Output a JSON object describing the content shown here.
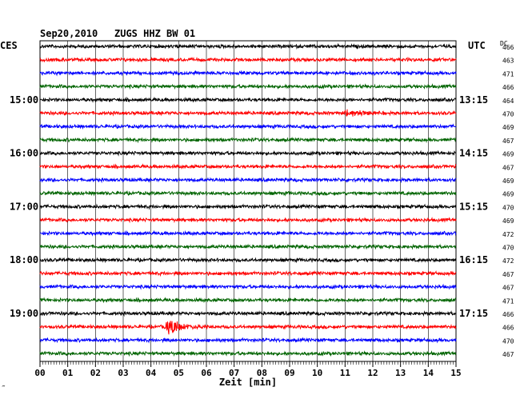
{
  "header": {
    "date": "Sep20,2010",
    "station": "ZUGS HHZ BW 01",
    "left_zone": "CES",
    "right_zone": "UTC",
    "dc_label": "DC"
  },
  "footer": {
    "corner_mark": "‴"
  },
  "chart_data": {
    "type": "line",
    "title": "Sep20,2010   ZUGS HHZ BW 01",
    "xlabel": "Zeit [min]",
    "xlim": [
      0,
      15
    ],
    "x_ticks": [
      "00",
      "01",
      "02",
      "03",
      "04",
      "05",
      "06",
      "07",
      "08",
      "09",
      "10",
      "11",
      "12",
      "13",
      "14",
      "15"
    ],
    "trace_colors": [
      "#000000",
      "#ff0000",
      "#0000ff",
      "#006400"
    ],
    "traces_per_hour": 4,
    "left_time_labels": [
      {
        "trace": 4,
        "label": "15:00"
      },
      {
        "trace": 8,
        "label": "16:00"
      },
      {
        "trace": 12,
        "label": "17:00"
      },
      {
        "trace": 16,
        "label": "18:00"
      },
      {
        "trace": 20,
        "label": "19:00"
      }
    ],
    "right_time_labels": [
      {
        "trace": 4,
        "label": "13:15"
      },
      {
        "trace": 8,
        "label": "14:15"
      },
      {
        "trace": 12,
        "label": "15:15"
      },
      {
        "trace": 16,
        "label": "16:15"
      },
      {
        "trace": 20,
        "label": "17:15"
      }
    ],
    "dc_offsets": [
      466,
      463,
      471,
      466,
      464,
      470,
      469,
      467,
      469,
      467,
      469,
      469,
      470,
      469,
      472,
      470,
      472,
      467,
      467,
      471,
      466,
      466,
      470,
      467
    ],
    "events": [
      {
        "trace": 5,
        "minute": 11.1,
        "amplitude": 0.8
      },
      {
        "trace": 21,
        "minute": 4.7,
        "amplitude": 1.6
      }
    ]
  }
}
